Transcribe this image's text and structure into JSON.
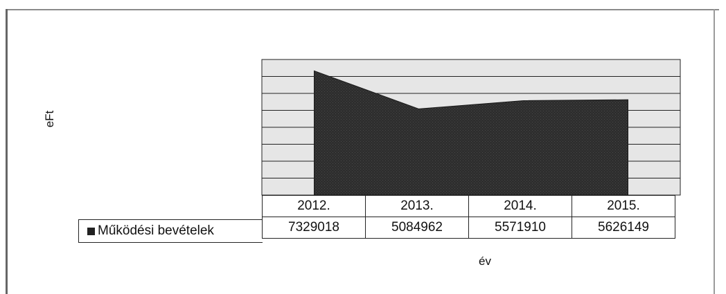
{
  "chart_data": {
    "type": "area",
    "ylabel": "eFt",
    "xlabel": "év",
    "categories": [
      "2012.",
      "2013.",
      "2014.",
      "2015."
    ],
    "series": [
      {
        "name": "Működési bevételek",
        "values": [
          7329018,
          5084962,
          5571910,
          5626149
        ]
      }
    ],
    "value_labels": [
      "7329018",
      "5084962",
      "5571910",
      "5626149"
    ],
    "ylim": [
      0,
      8000000
    ],
    "grid": true,
    "legend": "data-table",
    "colors": {
      "series": "#2e2e2e",
      "plot_background": "#e6e6e6",
      "gridline": "#222222"
    }
  }
}
